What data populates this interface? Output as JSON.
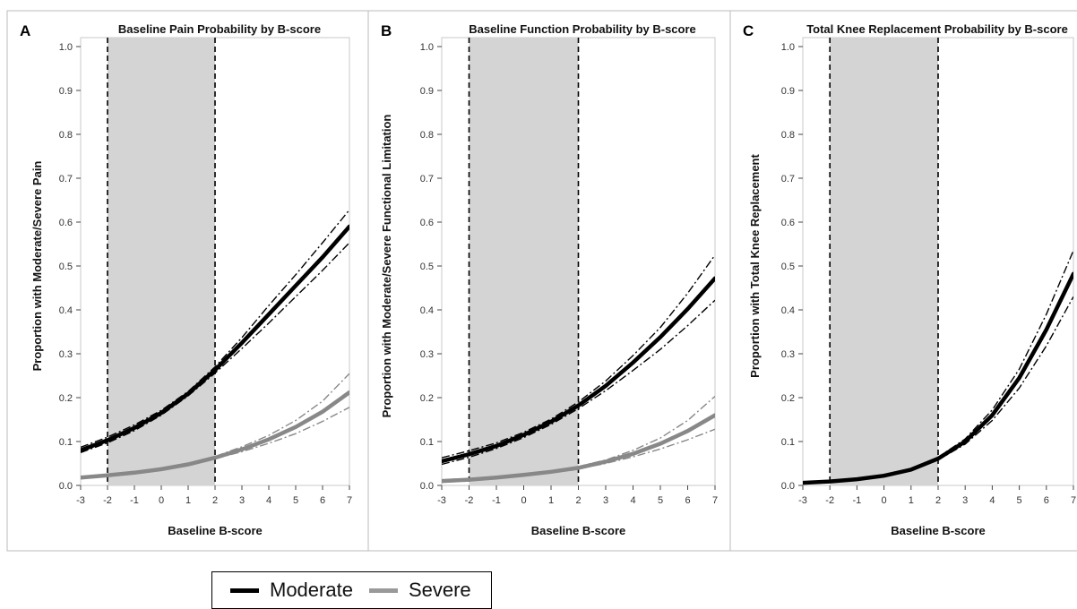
{
  "chart_data": [
    {
      "panel": "A",
      "type": "line",
      "title": "Baseline Pain Probability by B-score",
      "xlabel": "Baseline B-score",
      "ylabel": "Proportion with Moderate/Severe Pain",
      "xlim": [
        -3,
        7
      ],
      "ylim": [
        0,
        1
      ],
      "x_ticks": [
        -3,
        -2,
        -1,
        0,
        1,
        2,
        3,
        4,
        5,
        6,
        7
      ],
      "y_ticks": [
        0.0,
        0.1,
        0.2,
        0.3,
        0.4,
        0.5,
        0.6,
        0.7,
        0.8,
        0.9,
        1.0
      ],
      "shaded_region": [
        -2,
        2
      ],
      "reference_lines_x": [
        -2,
        2
      ],
      "series": [
        {
          "name": "Moderate",
          "color": "#000000",
          "x": [
            -3,
            -2,
            -1,
            0,
            1,
            2,
            3,
            4,
            5,
            6,
            7
          ],
          "y": [
            0.08,
            0.103,
            0.131,
            0.165,
            0.209,
            0.263,
            0.325,
            0.39,
            0.455,
            0.52,
            0.59
          ],
          "ci_lower": [
            0.075,
            0.097,
            0.125,
            0.16,
            0.204,
            0.256,
            0.312,
            0.37,
            0.43,
            0.49,
            0.553
          ],
          "ci_upper": [
            0.087,
            0.11,
            0.138,
            0.171,
            0.214,
            0.27,
            0.337,
            0.41,
            0.48,
            0.553,
            0.628
          ]
        },
        {
          "name": "Severe",
          "color": "#888888",
          "x": [
            -3,
            -2,
            -1,
            0,
            1,
            2,
            3,
            4,
            5,
            6,
            7
          ],
          "y": [
            0.018,
            0.023,
            0.029,
            0.037,
            0.048,
            0.063,
            0.082,
            0.105,
            0.133,
            0.168,
            0.212
          ],
          "ci_lower": [
            0.016,
            0.021,
            0.027,
            0.035,
            0.046,
            0.061,
            0.077,
            0.096,
            0.118,
            0.146,
            0.178
          ],
          "ci_upper": [
            0.02,
            0.025,
            0.031,
            0.039,
            0.05,
            0.066,
            0.088,
            0.114,
            0.148,
            0.192,
            0.255
          ]
        }
      ]
    },
    {
      "panel": "B",
      "type": "line",
      "title": "Baseline Function Probability by B-score",
      "xlabel": "Baseline B-score",
      "ylabel": "Proportion with Moderate/Severe Functional Limitation",
      "xlim": [
        -3,
        7
      ],
      "ylim": [
        0,
        1
      ],
      "x_ticks": [
        -3,
        -2,
        -1,
        0,
        1,
        2,
        3,
        4,
        5,
        6,
        7
      ],
      "y_ticks": [
        0.0,
        0.1,
        0.2,
        0.3,
        0.4,
        0.5,
        0.6,
        0.7,
        0.8,
        0.9,
        1.0
      ],
      "shaded_region": [
        -2,
        2
      ],
      "reference_lines_x": [
        -2,
        2
      ],
      "series": [
        {
          "name": "Moderate",
          "color": "#000000",
          "x": [
            -3,
            -2,
            -1,
            0,
            1,
            2,
            3,
            4,
            5,
            6,
            7
          ],
          "y": [
            0.055,
            0.071,
            0.09,
            0.115,
            0.145,
            0.182,
            0.227,
            0.28,
            0.338,
            0.402,
            0.472
          ],
          "ci_lower": [
            0.048,
            0.064,
            0.084,
            0.109,
            0.139,
            0.175,
            0.216,
            0.262,
            0.31,
            0.364,
            0.422
          ],
          "ci_upper": [
            0.063,
            0.079,
            0.097,
            0.121,
            0.151,
            0.19,
            0.238,
            0.296,
            0.36,
            0.438,
            0.525
          ]
        },
        {
          "name": "Severe",
          "color": "#888888",
          "x": [
            -3,
            -2,
            -1,
            0,
            1,
            2,
            3,
            4,
            5,
            6,
            7
          ],
          "y": [
            0.01,
            0.013,
            0.018,
            0.024,
            0.031,
            0.04,
            0.054,
            0.072,
            0.095,
            0.124,
            0.16
          ],
          "ci_lower": [
            0.009,
            0.012,
            0.016,
            0.022,
            0.029,
            0.038,
            0.05,
            0.065,
            0.083,
            0.104,
            0.128
          ],
          "ci_upper": [
            0.011,
            0.014,
            0.02,
            0.026,
            0.033,
            0.043,
            0.058,
            0.08,
            0.108,
            0.148,
            0.203
          ]
        }
      ]
    },
    {
      "panel": "C",
      "type": "line",
      "title": "Total Knee Replacement Probability by B-score",
      "xlabel": "Baseline B-score",
      "ylabel": "Proportion with Total Knee Replacement",
      "xlim": [
        -3,
        7
      ],
      "ylim": [
        0,
        1
      ],
      "x_ticks": [
        -3,
        -2,
        -1,
        0,
        1,
        2,
        3,
        4,
        5,
        6,
        7
      ],
      "y_ticks": [
        0.0,
        0.1,
        0.2,
        0.3,
        0.4,
        0.5,
        0.6,
        0.7,
        0.8,
        0.9,
        1.0
      ],
      "shaded_region": [
        -2,
        2
      ],
      "reference_lines_x": [
        -2,
        2
      ],
      "series": [
        {
          "name": "Moderate",
          "color": "#000000",
          "x": [
            -3,
            -2,
            -1,
            0,
            1,
            2,
            3,
            4,
            5,
            6,
            7
          ],
          "y": [
            0.006,
            0.009,
            0.014,
            0.022,
            0.036,
            0.061,
            0.1,
            0.16,
            0.245,
            0.355,
            0.482
          ],
          "ci_lower": [
            0.005,
            0.008,
            0.013,
            0.02,
            0.034,
            0.058,
            0.094,
            0.148,
            0.222,
            0.318,
            0.43
          ],
          "ci_upper": [
            0.007,
            0.01,
            0.015,
            0.024,
            0.038,
            0.064,
            0.106,
            0.172,
            0.265,
            0.39,
            0.535
          ]
        }
      ]
    }
  ],
  "legend": {
    "items": [
      {
        "label": "Moderate",
        "color": "#000000"
      },
      {
        "label": "Severe",
        "color": "#999999"
      }
    ]
  }
}
